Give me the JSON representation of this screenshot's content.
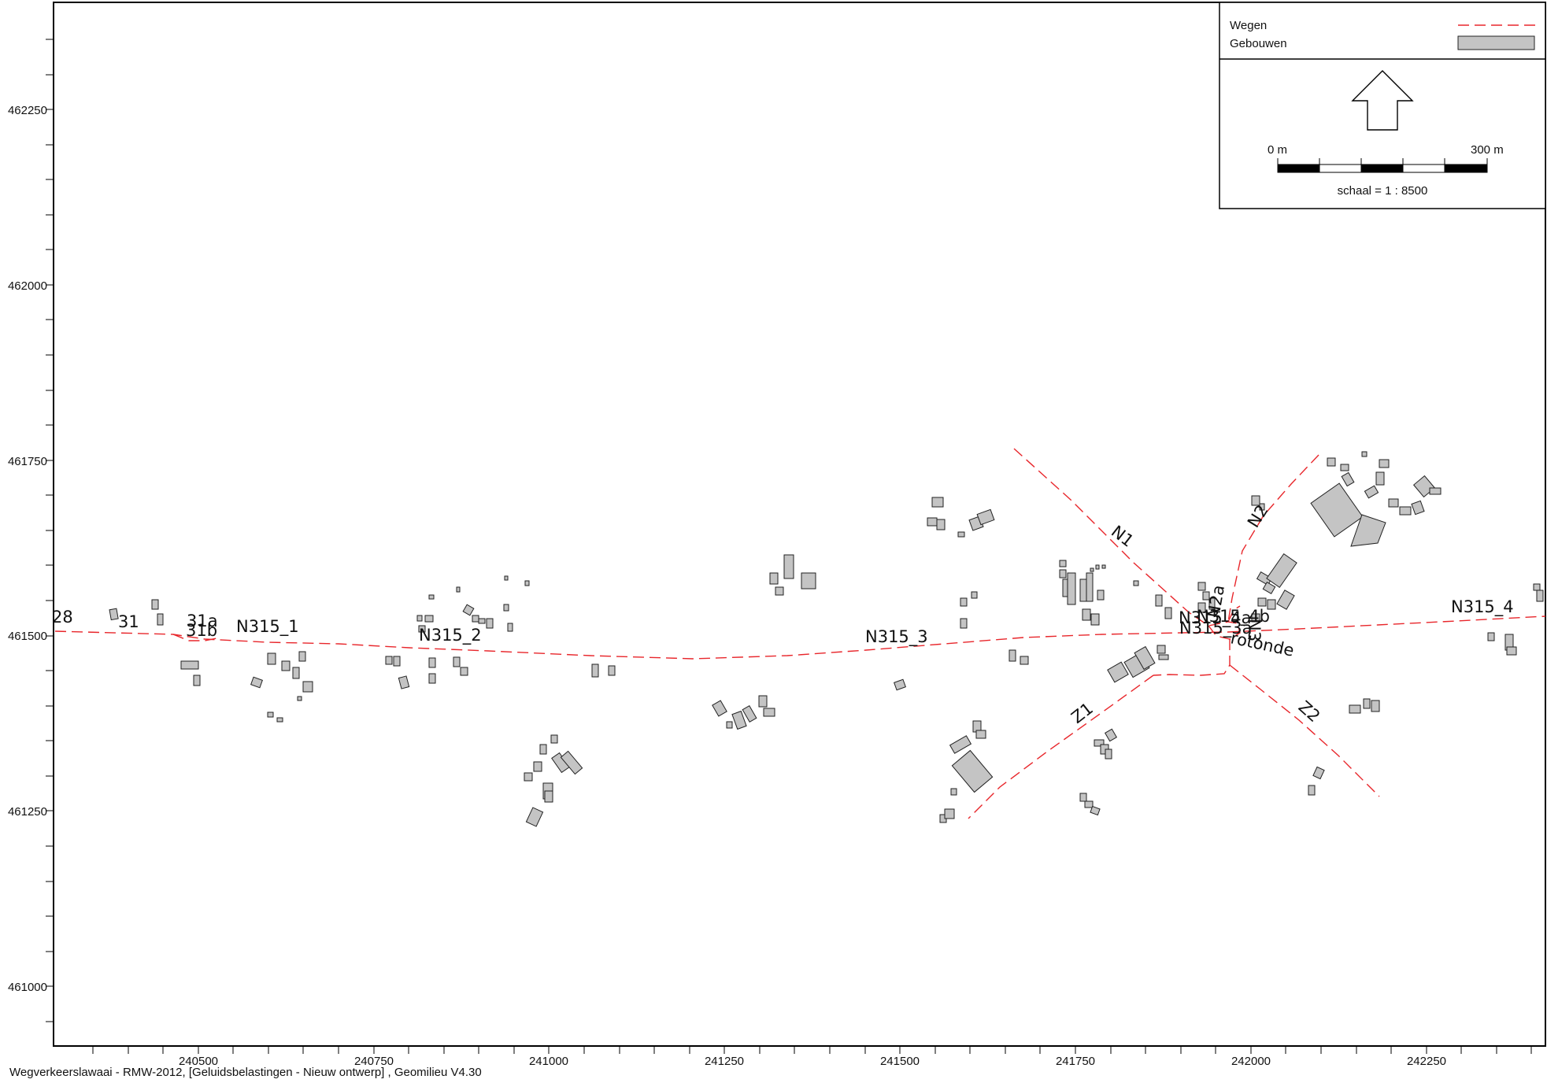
{
  "footer": "Wegverkeerslawaai - RMW-2012, [Geluidsbelastingen - Nieuw ontwerp] , Geomilieu V4.30",
  "colors": {
    "road": "#e8262b",
    "building_fill": "#c4c4c4",
    "building_stroke": "#222222",
    "frame": "#000000"
  },
  "axes": {
    "x_ticks": [
      "240500",
      "240750",
      "241000",
      "241250",
      "241500",
      "241750",
      "242000",
      "242250"
    ],
    "y_ticks": [
      "462250",
      "462000",
      "461750",
      "461500",
      "461250",
      "461000"
    ]
  },
  "legend": {
    "items": [
      {
        "label": "Wegen",
        "symbol": "dashed-line"
      },
      {
        "label": "Gebouwen",
        "symbol": "filled-rect"
      }
    ],
    "north_arrow": "north-arrow-icon",
    "scalebar": {
      "start_label": "0 m",
      "end_label": "300 m",
      "scale_text": "schaal = 1 : 8500"
    }
  },
  "road_labels": [
    "28",
    "31",
    "31a",
    "31b",
    "N315_1",
    "N315_2",
    "N315_3",
    "N315_4",
    "N1",
    "N2",
    "Z1",
    "Z2",
    "N2a",
    "N3",
    "N315_4a",
    "N315_4b",
    "N315_3a",
    "rotonde"
  ]
}
